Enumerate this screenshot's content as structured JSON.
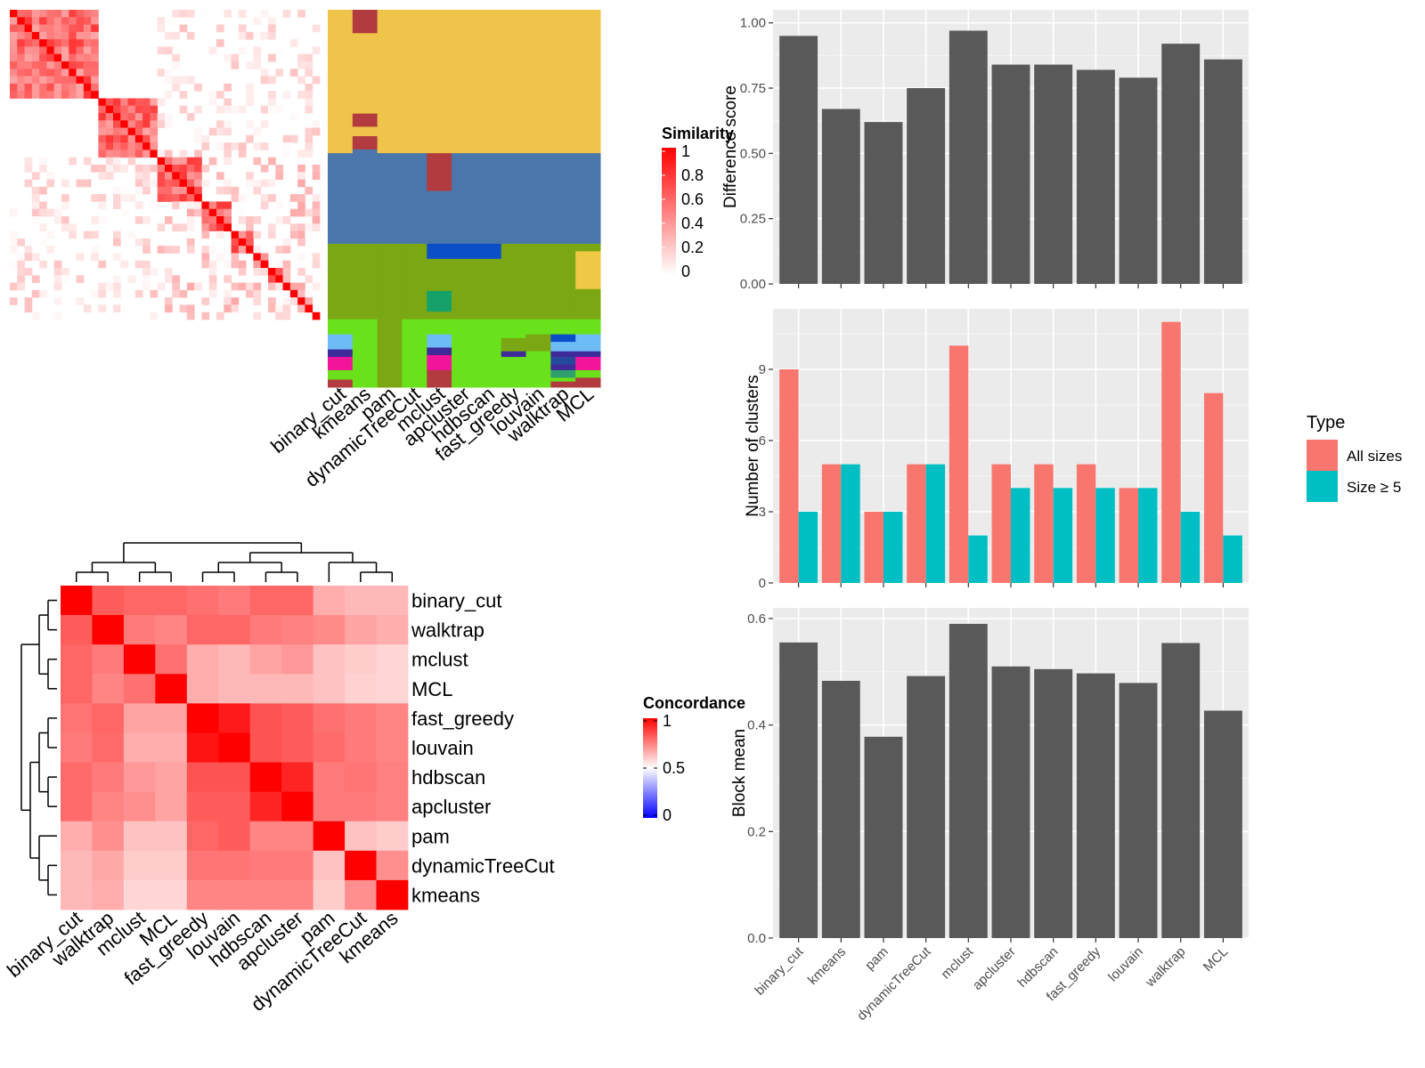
{
  "chart_data": [
    {
      "type": "heatmap",
      "name": "similarity-heatmap",
      "legend": {
        "title": "Similarity",
        "ticks": [
          "1",
          "0.8",
          "0.6",
          "0.4",
          "0.2",
          "0"
        ],
        "low_color": "#ffffff",
        "high_color": "#ff0000"
      },
      "blocks": [
        12,
        8,
        6,
        4,
        3,
        2,
        2,
        1,
        1,
        1,
        1,
        1
      ]
    },
    {
      "type": "heatmap",
      "name": "cluster-assignment-heatmap",
      "columns": [
        "binary_cut",
        "kmeans",
        "pam",
        "dynamicTreeCut",
        "mclust",
        "apcluster",
        "hdbscan",
        "fast_greedy",
        "louvain",
        "walktrap",
        "MCL"
      ],
      "colors": {
        "yellow": "#eec44a",
        "blue": "#4a76ab",
        "olive": "#7ba714",
        "lime": "#69e21b",
        "darkred": "#b23b3f",
        "royal": "#0a4fc6",
        "teal": "#16a16a",
        "sky": "#6dbcf5",
        "indigo": "#3f2a9a",
        "magenta": "#f2149b",
        "tan": "#efc845",
        "navy": "#254a9c",
        "mint": "#2e9f6d"
      }
    },
    {
      "type": "heatmap",
      "name": "concordance-heatmap",
      "legend": {
        "title": "Concordance",
        "ticks": [
          "1",
          "0.5",
          "0"
        ],
        "colors": [
          "#0000ff",
          "#ffffff",
          "#ff0000"
        ]
      },
      "rows": [
        "binary_cut",
        "walktrap",
        "mclust",
        "MCL",
        "fast_greedy",
        "louvain",
        "hdbscan",
        "apcluster",
        "pam",
        "dynamicTreeCut",
        "kmeans"
      ],
      "columns": [
        "binary_cut",
        "walktrap",
        "mclust",
        "MCL",
        "fast_greedy",
        "louvain",
        "hdbscan",
        "apcluster",
        "pam",
        "dynamicTreeCut",
        "kmeans"
      ],
      "values": [
        [
          1.0,
          0.82,
          0.8,
          0.8,
          0.78,
          0.76,
          0.8,
          0.8,
          0.66,
          0.64,
          0.64
        ],
        [
          0.82,
          1.0,
          0.76,
          0.74,
          0.8,
          0.8,
          0.76,
          0.75,
          0.73,
          0.68,
          0.66
        ],
        [
          0.8,
          0.76,
          1.0,
          0.78,
          0.66,
          0.64,
          0.68,
          0.7,
          0.62,
          0.6,
          0.58
        ],
        [
          0.8,
          0.74,
          0.78,
          1.0,
          0.66,
          0.64,
          0.64,
          0.64,
          0.62,
          0.59,
          0.58
        ],
        [
          0.77,
          0.8,
          0.68,
          0.68,
          1.0,
          0.95,
          0.84,
          0.82,
          0.78,
          0.76,
          0.74
        ],
        [
          0.76,
          0.79,
          0.66,
          0.66,
          0.96,
          1.0,
          0.84,
          0.82,
          0.79,
          0.76,
          0.74
        ],
        [
          0.79,
          0.76,
          0.7,
          0.68,
          0.84,
          0.84,
          1.0,
          0.93,
          0.76,
          0.77,
          0.75
        ],
        [
          0.79,
          0.74,
          0.72,
          0.68,
          0.82,
          0.82,
          0.93,
          1.0,
          0.76,
          0.76,
          0.75
        ],
        [
          0.66,
          0.72,
          0.62,
          0.62,
          0.8,
          0.82,
          0.74,
          0.74,
          1.0,
          0.62,
          0.6
        ],
        [
          0.64,
          0.67,
          0.6,
          0.6,
          0.77,
          0.77,
          0.76,
          0.76,
          0.62,
          1.0,
          0.72
        ],
        [
          0.64,
          0.66,
          0.58,
          0.58,
          0.74,
          0.74,
          0.74,
          0.74,
          0.6,
          0.72,
          1.0
        ]
      ]
    },
    {
      "type": "bar",
      "name": "difference-score",
      "categories": [
        "binary_cut",
        "kmeans",
        "pam",
        "dynamicTreeCut",
        "mclust",
        "apcluster",
        "hdbscan",
        "fast_greedy",
        "louvain",
        "walktrap",
        "MCL"
      ],
      "values": [
        0.95,
        0.67,
        0.62,
        0.75,
        0.97,
        0.84,
        0.84,
        0.82,
        0.79,
        0.92,
        0.86
      ],
      "ylabel": "Difference score",
      "ylim": [
        0,
        1.05
      ],
      "yticks": [
        "0.00",
        "0.25",
        "0.50",
        "0.75",
        "1.00"
      ],
      "color": "#595959",
      "grid": true
    },
    {
      "type": "bar",
      "name": "number-of-clusters",
      "categories": [
        "binary_cut",
        "kmeans",
        "pam",
        "dynamicTreeCut",
        "mclust",
        "apcluster",
        "hdbscan",
        "fast_greedy",
        "louvain",
        "walktrap",
        "MCL"
      ],
      "series": [
        {
          "name": "All sizes",
          "values": [
            9,
            5,
            3,
            5,
            10,
            5,
            5,
            5,
            4,
            11,
            8
          ],
          "color": "#f8766d"
        },
        {
          "name": "Size ≥ 5",
          "values": [
            3,
            5,
            3,
            5,
            2,
            4,
            4,
            4,
            4,
            3,
            2
          ],
          "color": "#00bfc4"
        }
      ],
      "ylabel": "Number of clusters",
      "ylim": [
        0,
        11.55
      ],
      "yticks": [
        "0",
        "3",
        "6",
        "9"
      ],
      "legend": {
        "title": "Type",
        "position": "right"
      },
      "grid": true
    },
    {
      "type": "bar",
      "name": "block-mean",
      "categories": [
        "binary_cut",
        "kmeans",
        "pam",
        "dynamicTreeCut",
        "mclust",
        "apcluster",
        "hdbscan",
        "fast_greedy",
        "louvain",
        "walktrap",
        "MCL"
      ],
      "values": [
        0.555,
        0.483,
        0.378,
        0.492,
        0.59,
        0.51,
        0.505,
        0.497,
        0.479,
        0.554,
        0.427
      ],
      "ylabel": "Block mean",
      "ylim": [
        0,
        0.62
      ],
      "yticks": [
        "0.0",
        "0.2",
        "0.4",
        "0.6"
      ],
      "color": "#595959",
      "grid": true
    }
  ]
}
